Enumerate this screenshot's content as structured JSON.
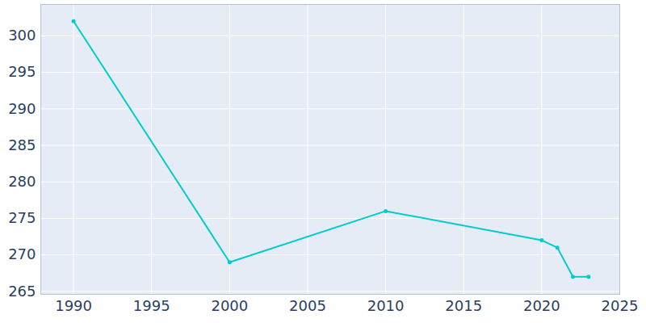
{
  "chart_data": {
    "type": "line",
    "x": [
      1990,
      2000,
      2010,
      2020,
      2021,
      2022,
      2023
    ],
    "values": [
      302,
      269,
      276,
      272,
      271,
      267,
      267
    ],
    "color": "#00cccc",
    "marker": "circle",
    "xlim": [
      1987.9,
      2025
    ],
    "xticks": [
      1990,
      1995,
      2000,
      2005,
      2010,
      2015,
      2020,
      2025
    ],
    "ylim": [
      264.6,
      304.3
    ],
    "yticks": [
      265,
      270,
      275,
      280,
      285,
      290,
      295,
      300
    ],
    "grid": true
  }
}
